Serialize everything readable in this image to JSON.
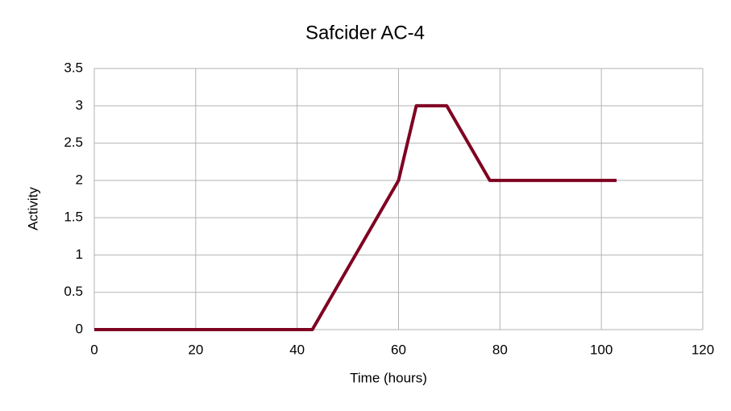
{
  "chart_data": {
    "type": "line",
    "title": "Safcider AC-4",
    "x_label": "Time (hours)",
    "y_label": "Activity",
    "x": [
      0,
      43,
      60,
      63.5,
      69.5,
      78,
      103
    ],
    "series": [
      {
        "name": "Activity",
        "color": "#7f0021",
        "values": [
          0,
          0,
          2,
          3,
          3,
          2,
          2
        ]
      }
    ],
    "xlim": [
      0,
      120
    ],
    "xticks": [
      0,
      20,
      40,
      60,
      80,
      100,
      120
    ],
    "ylim": [
      0,
      3.5
    ],
    "yticks": [
      0,
      0.5,
      1,
      1.5,
      2,
      2.5,
      3,
      3.5
    ],
    "grid": true
  }
}
